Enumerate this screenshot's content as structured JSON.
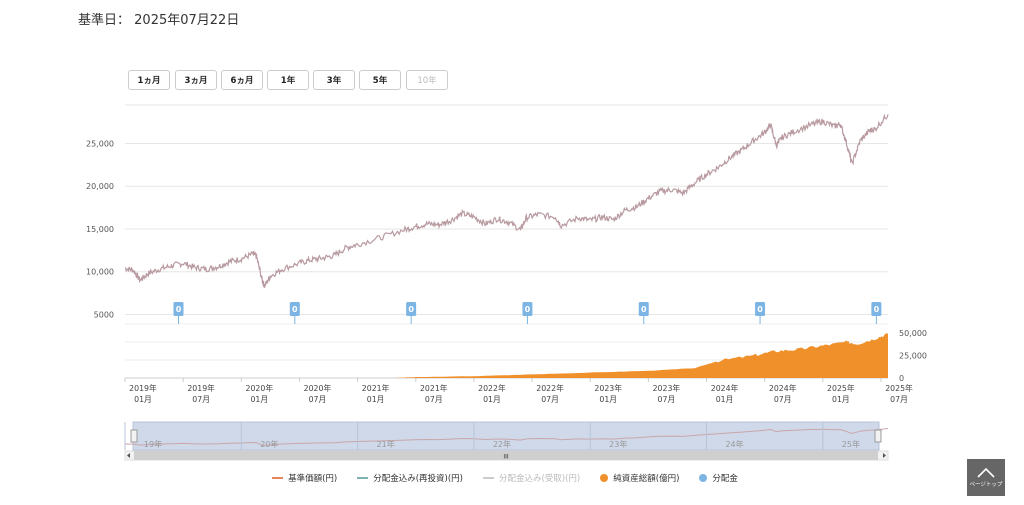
{
  "header": {
    "base_date_label": "基準日：",
    "base_date_value": "2025年07月22日"
  },
  "range_buttons": [
    {
      "label": "1ヵ月",
      "enabled": true
    },
    {
      "label": "3ヵ月",
      "enabled": true
    },
    {
      "label": "6ヵ月",
      "enabled": true
    },
    {
      "label": "1年",
      "enabled": true
    },
    {
      "label": "3年",
      "enabled": true
    },
    {
      "label": "5年",
      "enabled": true
    },
    {
      "label": "10年",
      "enabled": false
    }
  ],
  "legend": [
    {
      "label": "基準価額(円)",
      "marker": "line",
      "color": "#e8845c",
      "visible": true
    },
    {
      "label": "分配金込み(再投資)(円)",
      "marker": "line",
      "color": "#7fb3b0",
      "visible": true
    },
    {
      "label": "分配金込み(受取)(円)",
      "marker": "line",
      "color": "#cccccc",
      "visible": false
    },
    {
      "label": "純資産総額(億円)",
      "marker": "dot",
      "color": "#f0902a",
      "visible": true
    },
    {
      "label": "分配金",
      "marker": "dot",
      "color": "#7cb5e4",
      "visible": true
    }
  ],
  "page_top": {
    "label": "ページトップ",
    "icon": "chevron-up-icon"
  },
  "navigator": {
    "year_labels": [
      "19年",
      "20年",
      "21年",
      "22年",
      "23年",
      "24年",
      "25年"
    ],
    "scroll_grip": "III"
  },
  "chart_data": {
    "type": "line",
    "price": {
      "yticks": [
        "5000",
        "10,000",
        "15,000",
        "20,000",
        "25,000"
      ],
      "ylim": [
        4000,
        29500
      ],
      "xlim": [
        2019.0,
        2025.56
      ],
      "series": [
        {
          "name": "基準価額(円)",
          "color": "#b89aa0",
          "points": [
            [
              2019.0,
              10400
            ],
            [
              2019.07,
              10200
            ],
            [
              2019.13,
              9000
            ],
            [
              2019.2,
              9800
            ],
            [
              2019.3,
              10300
            ],
            [
              2019.4,
              10700
            ],
            [
              2019.5,
              11000
            ],
            [
              2019.6,
              10500
            ],
            [
              2019.7,
              10300
            ],
            [
              2019.8,
              10600
            ],
            [
              2019.9,
              11200
            ],
            [
              2020.0,
              11500
            ],
            [
              2020.1,
              12100
            ],
            [
              2020.13,
              11800
            ],
            [
              2020.18,
              9000
            ],
            [
              2020.2,
              8300
            ],
            [
              2020.25,
              9500
            ],
            [
              2020.35,
              10300
            ],
            [
              2020.5,
              11000
            ],
            [
              2020.6,
              11400
            ],
            [
              2020.7,
              11600
            ],
            [
              2020.8,
              11900
            ],
            [
              2020.9,
              12800
            ],
            [
              2021.0,
              13200
            ],
            [
              2021.2,
              14000
            ],
            [
              2021.4,
              14900
            ],
            [
              2021.5,
              15300
            ],
            [
              2021.6,
              15600
            ],
            [
              2021.7,
              15500
            ],
            [
              2021.8,
              16000
            ],
            [
              2021.9,
              16800
            ],
            [
              2022.0,
              16400
            ],
            [
              2022.1,
              15600
            ],
            [
              2022.2,
              16200
            ],
            [
              2022.3,
              15800
            ],
            [
              2022.4,
              14900
            ],
            [
              2022.45,
              16300
            ],
            [
              2022.55,
              16700
            ],
            [
              2022.7,
              16400
            ],
            [
              2022.75,
              15400
            ],
            [
              2022.9,
              16300
            ],
            [
              2023.0,
              16000
            ],
            [
              2023.1,
              16400
            ],
            [
              2023.2,
              16100
            ],
            [
              2023.3,
              17200
            ],
            [
              2023.4,
              17600
            ],
            [
              2023.5,
              18600
            ],
            [
              2023.6,
              19400
            ],
            [
              2023.7,
              19600
            ],
            [
              2023.8,
              19200
            ],
            [
              2023.9,
              20400
            ],
            [
              2024.0,
              21400
            ],
            [
              2024.1,
              22200
            ],
            [
              2024.2,
              23300
            ],
            [
              2024.3,
              24200
            ],
            [
              2024.4,
              25300
            ],
            [
              2024.5,
              26300
            ],
            [
              2024.55,
              27200
            ],
            [
              2024.6,
              24800
            ],
            [
              2024.65,
              25700
            ],
            [
              2024.75,
              26400
            ],
            [
              2024.9,
              27200
            ],
            [
              2025.0,
              27600
            ],
            [
              2025.1,
              27000
            ],
            [
              2025.15,
              27300
            ],
            [
              2025.2,
              25200
            ],
            [
              2025.25,
              22600
            ],
            [
              2025.32,
              25300
            ],
            [
              2025.4,
              26500
            ],
            [
              2025.45,
              26700
            ],
            [
              2025.56,
              28400
            ]
          ]
        }
      ]
    },
    "distributions": [
      {
        "x": 2019.46,
        "label": "0"
      },
      {
        "x": 2020.46,
        "label": "0"
      },
      {
        "x": 2021.46,
        "label": "0"
      },
      {
        "x": 2022.46,
        "label": "0"
      },
      {
        "x": 2023.46,
        "label": "0"
      },
      {
        "x": 2024.46,
        "label": "0"
      },
      {
        "x": 2025.46,
        "label": "0"
      }
    ],
    "net_assets": {
      "name": "純資産総額(億円)",
      "color": "#f0902a",
      "yticks": [
        "0",
        "25,000",
        "50,000"
      ],
      "ylim": [
        0,
        60000
      ],
      "points": [
        [
          2021.3,
          0
        ],
        [
          2021.5,
          1000
        ],
        [
          2022.0,
          2000
        ],
        [
          2022.5,
          4000
        ],
        [
          2023.0,
          6000
        ],
        [
          2023.5,
          8000
        ],
        [
          2023.9,
          11000
        ],
        [
          2024.1,
          19000
        ],
        [
          2024.4,
          25000
        ],
        [
          2024.6,
          30000
        ],
        [
          2024.8,
          32000
        ],
        [
          2025.0,
          36000
        ],
        [
          2025.2,
          40000
        ],
        [
          2025.3,
          38000
        ],
        [
          2025.45,
          44000
        ],
        [
          2025.56,
          49000
        ]
      ]
    },
    "x_axis_labels": [
      {
        "year": "2019年",
        "month": "01月",
        "x": 2019.0
      },
      {
        "year": "2019年",
        "month": "07月",
        "x": 2019.5
      },
      {
        "year": "2020年",
        "month": "01月",
        "x": 2020.0
      },
      {
        "year": "2020年",
        "month": "07月",
        "x": 2020.5
      },
      {
        "year": "2021年",
        "month": "01月",
        "x": 2021.0
      },
      {
        "year": "2021年",
        "month": "07月",
        "x": 2021.5
      },
      {
        "year": "2022年",
        "month": "01月",
        "x": 2022.0
      },
      {
        "year": "2022年",
        "month": "07月",
        "x": 2022.5
      },
      {
        "year": "2023年",
        "month": "01月",
        "x": 2023.0
      },
      {
        "year": "2023年",
        "month": "07月",
        "x": 2023.5
      },
      {
        "year": "2024年",
        "month": "01月",
        "x": 2024.0
      },
      {
        "year": "2024年",
        "month": "07月",
        "x": 2024.5
      },
      {
        "year": "2025年",
        "month": "01月",
        "x": 2025.0
      },
      {
        "year": "2025年",
        "month": "07月",
        "x": 2025.5
      }
    ]
  }
}
